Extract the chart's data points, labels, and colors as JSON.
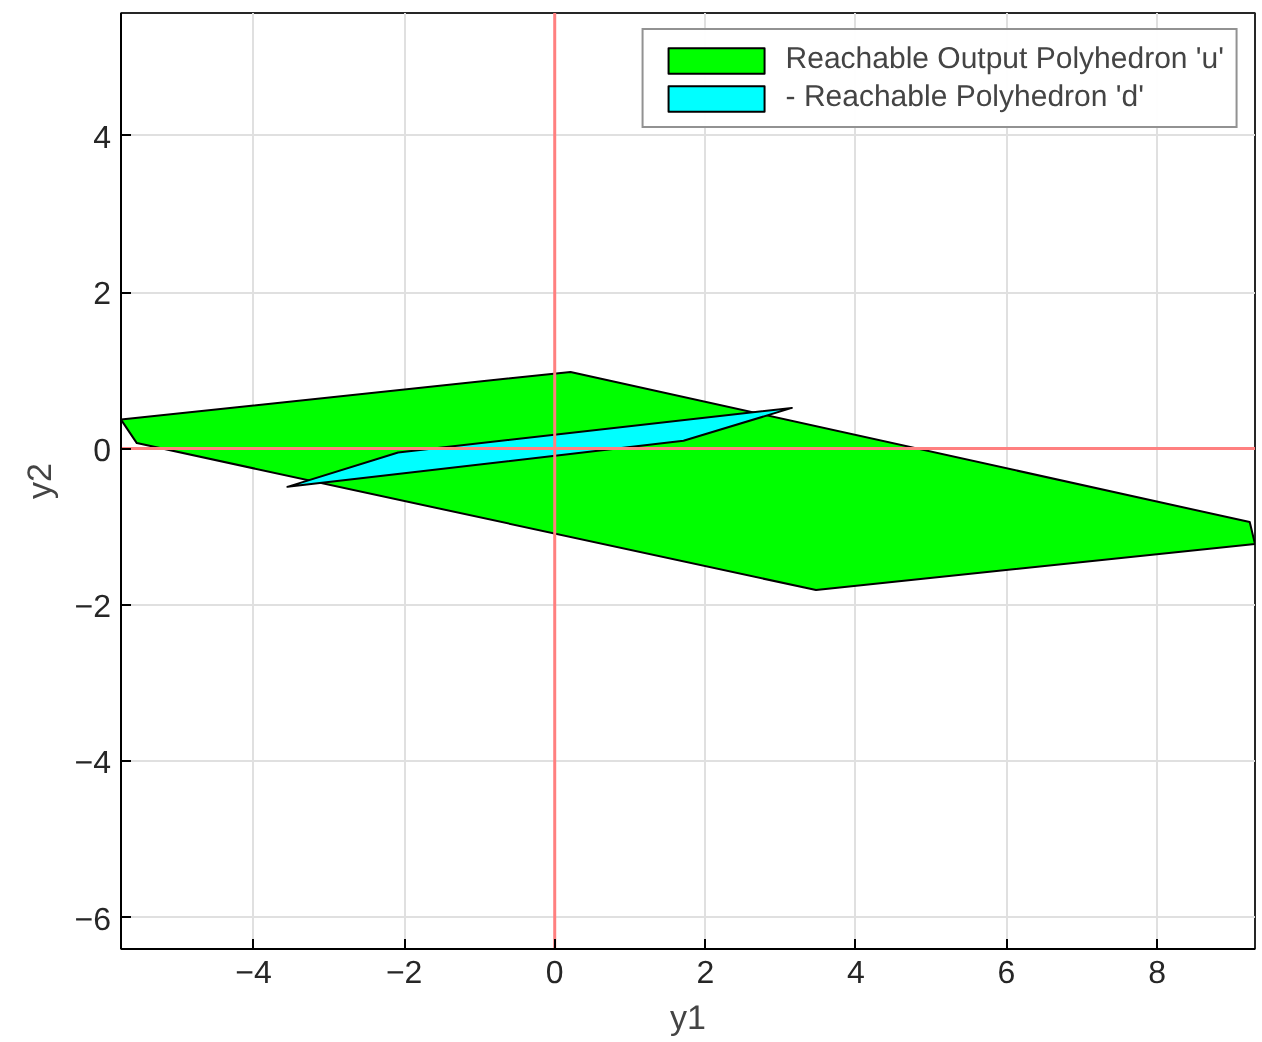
{
  "chart_data": {
    "type": "area",
    "xlabel": "y1",
    "ylabel": "y2",
    "xlim": [
      -5.76,
      9.3
    ],
    "ylim": [
      -6.4,
      5.57
    ],
    "xticks": [
      -4,
      -2,
      0,
      2,
      4,
      6,
      8
    ],
    "yticks": [
      -6,
      -4,
      -2,
      0,
      2,
      4
    ],
    "grid": true,
    "legend": "top right",
    "series": [
      {
        "name": "Reachable Output Polyhedron 'u'",
        "color": "#00ff00",
        "x": [
          -5.76,
          -5.55,
          3.47,
          9.3,
          9.23,
          0.21
        ],
        "values": [
          0.37,
          0.07,
          -1.81,
          -1.22,
          -0.94,
          0.98
        ]
      },
      {
        "name": "- Reachable Polyhedron 'd'",
        "color": "#00ffff",
        "x": [
          -3.55,
          -2.08,
          3.15,
          1.71
        ],
        "values": [
          -0.49,
          -0.05,
          0.52,
          0.1
        ]
      },
      {
        "type": "line",
        "color": "#ff8080",
        "x": [
          0,
          0
        ],
        "values": [
          -6.4,
          5.57
        ]
      },
      {
        "type": "line",
        "color": "#ff8080",
        "x": [
          -5.76,
          9.3
        ],
        "values": [
          0,
          0
        ]
      }
    ]
  }
}
